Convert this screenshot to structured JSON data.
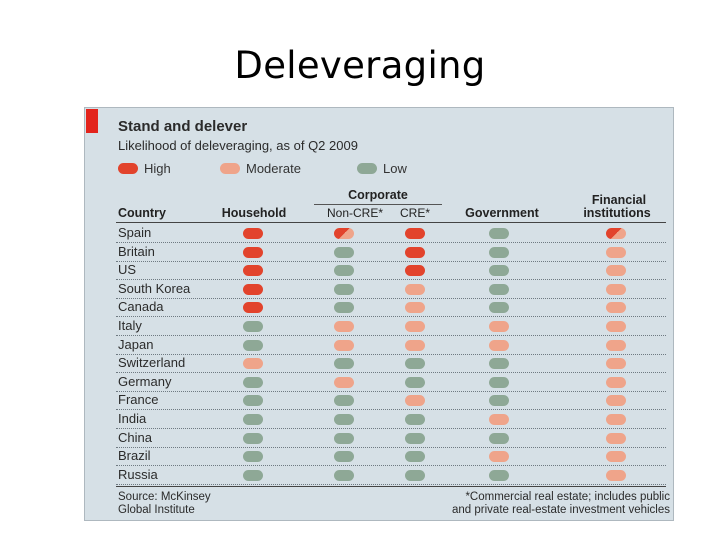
{
  "slide": {
    "title": "Deleveraging"
  },
  "colors": {
    "high": "#e2432c",
    "moderate": "#efa48a",
    "low": "#8ea896",
    "panel": "#d6e0e6",
    "accent": "#e3241c"
  },
  "chart_data": {
    "type": "table",
    "title": "Stand and delever",
    "subtitle": "Likelihood of deleveraging, as of Q2 2009",
    "legend": [
      {
        "key": "high",
        "label": "High"
      },
      {
        "key": "moderate",
        "label": "Moderate"
      },
      {
        "key": "low",
        "label": "Low"
      }
    ],
    "headers": {
      "country": "Country",
      "household": "Household",
      "corporate": "Corporate",
      "noncre": "Non-CRE*",
      "cre": "CRE*",
      "government": "Government",
      "financial_1": "Financial",
      "financial_2": "institutions"
    },
    "columns": [
      "household",
      "noncre",
      "cre",
      "government",
      "financial"
    ],
    "rows": [
      {
        "country": "Spain",
        "values": [
          "high",
          "high/moderate",
          "high",
          "low",
          "high/moderate"
        ]
      },
      {
        "country": "Britain",
        "values": [
          "high",
          "low",
          "high",
          "low",
          "moderate"
        ]
      },
      {
        "country": "US",
        "values": [
          "high",
          "low",
          "high",
          "low",
          "moderate"
        ]
      },
      {
        "country": "South Korea",
        "values": [
          "high",
          "low",
          "moderate",
          "low",
          "moderate"
        ]
      },
      {
        "country": "Canada",
        "values": [
          "high",
          "low",
          "moderate",
          "low",
          "moderate"
        ]
      },
      {
        "country": "Italy",
        "values": [
          "low",
          "moderate",
          "moderate",
          "moderate",
          "moderate"
        ]
      },
      {
        "country": "Japan",
        "values": [
          "low",
          "moderate",
          "moderate",
          "moderate",
          "moderate"
        ]
      },
      {
        "country": "Switzerland",
        "values": [
          "moderate",
          "low",
          "low",
          "low",
          "moderate"
        ]
      },
      {
        "country": "Germany",
        "values": [
          "low",
          "moderate",
          "low",
          "low",
          "moderate"
        ]
      },
      {
        "country": "France",
        "values": [
          "low",
          "low",
          "moderate",
          "low",
          "moderate"
        ]
      },
      {
        "country": "India",
        "values": [
          "low",
          "low",
          "low",
          "moderate",
          "moderate"
        ]
      },
      {
        "country": "China",
        "values": [
          "low",
          "low",
          "low",
          "low",
          "moderate"
        ]
      },
      {
        "country": "Brazil",
        "values": [
          "low",
          "low",
          "low",
          "moderate",
          "moderate"
        ]
      },
      {
        "country": "Russia",
        "values": [
          "low",
          "low",
          "low",
          "low",
          "moderate"
        ]
      }
    ],
    "source_1": "Source: McKinsey",
    "source_2": "Global Institute",
    "footnote_1": "*Commercial real estate; includes public",
    "footnote_2": "and private real-estate investment vehicles"
  }
}
